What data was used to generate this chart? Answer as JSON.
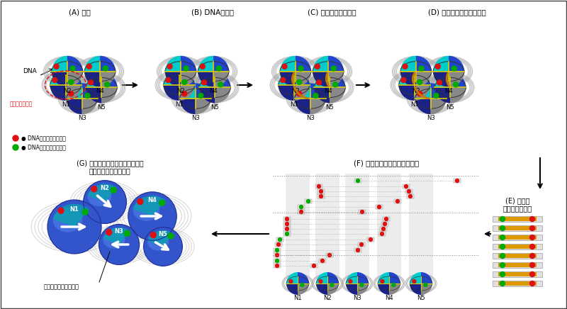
{
  "bg_color": "#ffffff",
  "title_A": "(A) 架橋",
  "title_B": "(B) DNAの切断",
  "title_C": "(C) アダプターの連結",
  "title_D": "(D) アダプター同士の連結",
  "title_E": "(E) 精製と\nゲノム配列解読",
  "title_F": "(F) ゲノム配列上の位置の特定",
  "title_G": "(G) 分子動力学シミュレーション\nによる立体構造の決定",
  "legend_red": "DNAの巻き付き開始点",
  "legend_green": "DNAの巻き付き終了点",
  "nuclsome_label": "ヌクレオソーム",
  "nuclsome_orientation": "ヌクレオソームの配向",
  "dna_label": "DNA",
  "blue_dark": "#1a2288",
  "blue_mid": "#2244cc",
  "cyan_col": "#00cccc",
  "gray_col": "#888888",
  "orange_col": "#cc7700",
  "yellow_col": "#ddcc00",
  "red_col": "#dd1111",
  "green_col": "#00aa00",
  "coil_col": "#aaaaaa",
  "adapt_col": "#cc7700"
}
